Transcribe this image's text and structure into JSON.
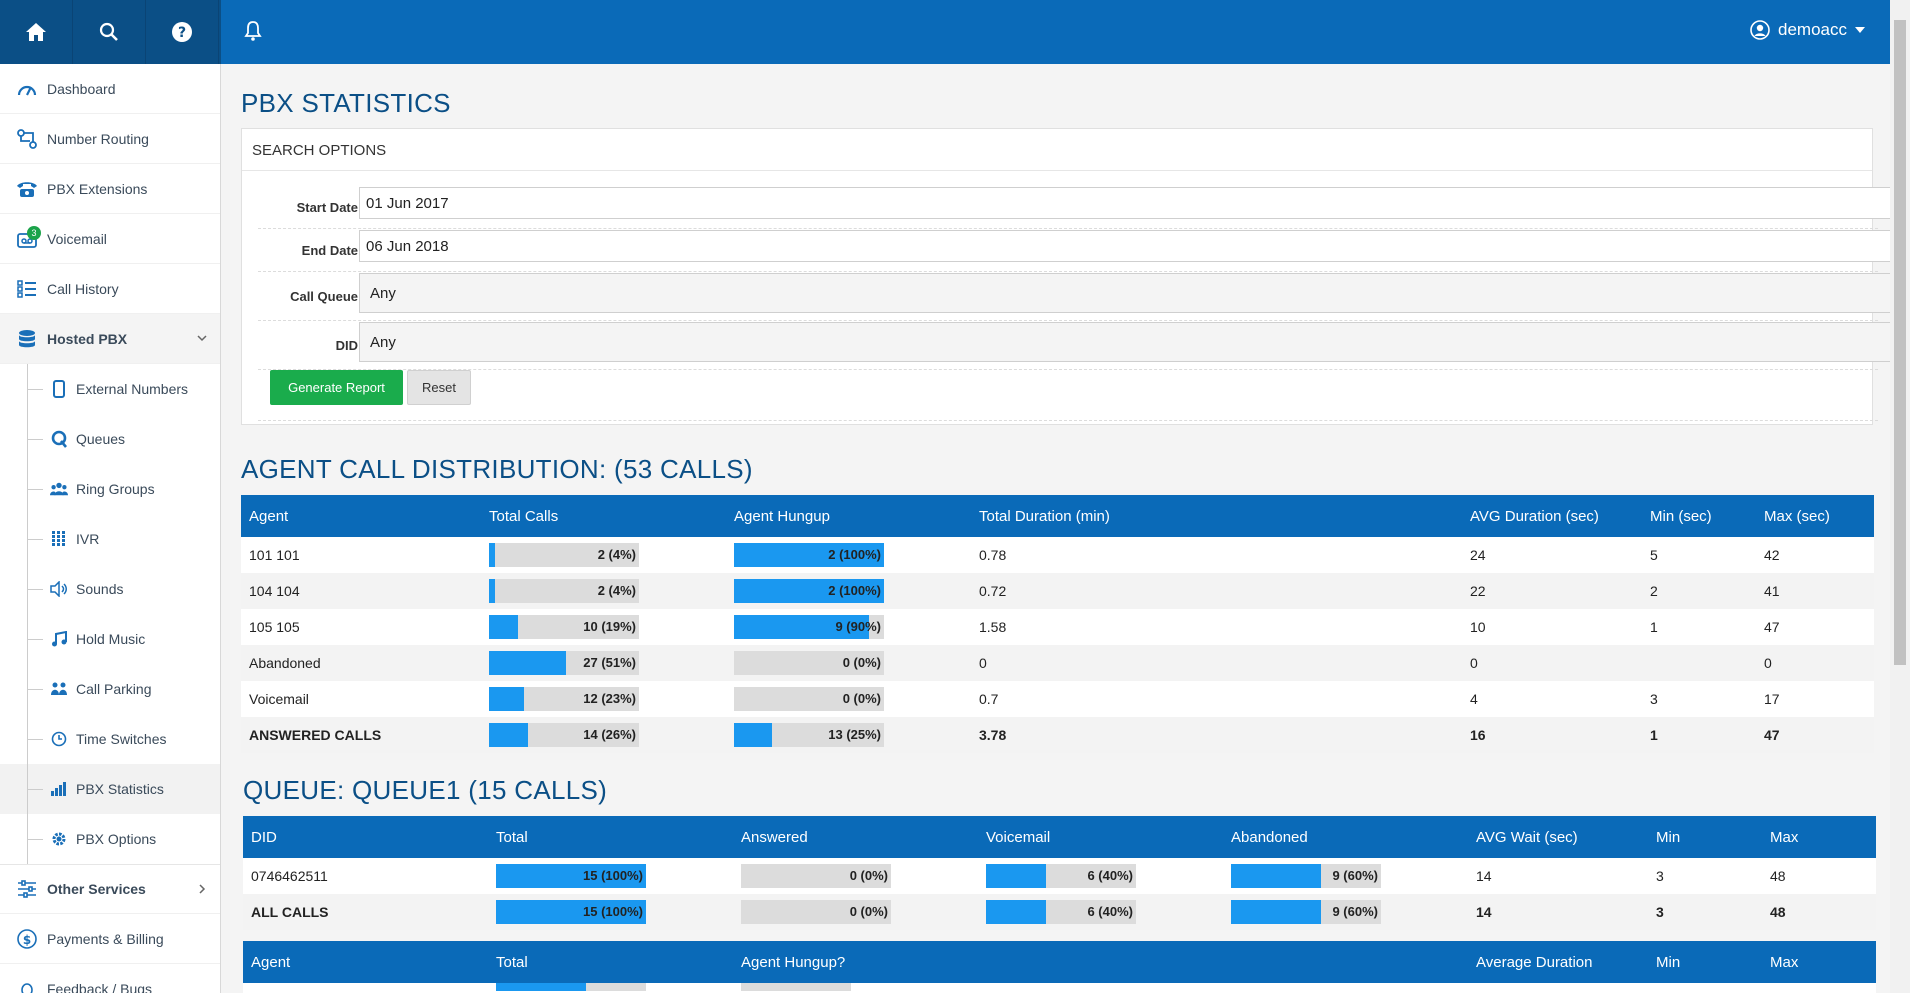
{
  "topbar": {
    "icons": [
      "home-icon",
      "search-icon",
      "help-icon",
      "bell-icon"
    ],
    "user": "demoacc"
  },
  "sidebar": {
    "items": [
      {
        "label": "Dashboard",
        "icon": "gauge-icon"
      },
      {
        "label": "Number Routing",
        "icon": "routing-icon"
      },
      {
        "label": "PBX Extensions",
        "icon": "phone-icon"
      },
      {
        "label": "Voicemail",
        "icon": "voicemail-icon",
        "badge": "3"
      },
      {
        "label": "Call History",
        "icon": "list-icon"
      },
      {
        "label": "Hosted PBX",
        "icon": "database-icon"
      }
    ],
    "subitems": [
      {
        "label": "External Numbers",
        "icon": "mobile-icon"
      },
      {
        "label": "Queues",
        "icon": "queue-icon"
      },
      {
        "label": "Ring Groups",
        "icon": "group-icon"
      },
      {
        "label": "IVR",
        "icon": "keypad-icon"
      },
      {
        "label": "Sounds",
        "icon": "speaker-icon"
      },
      {
        "label": "Hold Music",
        "icon": "music-icon"
      },
      {
        "label": "Call Parking",
        "icon": "parking-icon"
      },
      {
        "label": "Time Switches",
        "icon": "clock-icon"
      },
      {
        "label": "PBX Statistics",
        "icon": "bar-chart-icon"
      },
      {
        "label": "PBX Options",
        "icon": "gear-icon"
      }
    ],
    "bottom": [
      {
        "label": "Other Services",
        "icon": "sliders-icon"
      },
      {
        "label": "Payments & Billing",
        "icon": "dollar-icon"
      },
      {
        "label": "Feedback / Bugs",
        "icon": "bug-icon"
      }
    ]
  },
  "page": {
    "title": "PBX STATISTICS"
  },
  "search": {
    "header": "SEARCH OPTIONS",
    "start_label": "Start Date",
    "start_value": "01 Jun 2017",
    "end_label": "End Date",
    "end_value": "06 Jun 2018",
    "queue_label": "Call Queue",
    "queue_value": "Any",
    "did_label": "DID",
    "did_value": "Any",
    "generate": "Generate Report",
    "reset": "Reset"
  },
  "agent_dist": {
    "title": "AGENT CALL DISTRIBUTION: (53 CALLS)",
    "headers": [
      "Agent",
      "Total Calls",
      "Agent Hungup",
      "Total Duration (min)",
      "AVG Duration (sec)",
      "Min (sec)",
      "Max (sec)"
    ],
    "rows": [
      {
        "agent": "101 101",
        "total": "2 (4%)",
        "total_pct": 4,
        "hungup": "2 (100%)",
        "hungup_pct": 100,
        "duration": "0.78",
        "avg": "24",
        "min": "5",
        "max": "42"
      },
      {
        "agent": "104 104",
        "total": "2 (4%)",
        "total_pct": 4,
        "hungup": "2 (100%)",
        "hungup_pct": 100,
        "duration": "0.72",
        "avg": "22",
        "min": "2",
        "max": "41"
      },
      {
        "agent": "105 105",
        "total": "10 (19%)",
        "total_pct": 19,
        "hungup": "9 (90%)",
        "hungup_pct": 90,
        "duration": "1.58",
        "avg": "10",
        "min": "1",
        "max": "47"
      },
      {
        "agent": "Abandoned",
        "total": "27 (51%)",
        "total_pct": 51,
        "hungup": "0 (0%)",
        "hungup_pct": 0,
        "duration": "0",
        "avg": "0",
        "min": "",
        "max": "0"
      },
      {
        "agent": "Voicemail",
        "total": "12 (23%)",
        "total_pct": 23,
        "hungup": "0 (0%)",
        "hungup_pct": 0,
        "duration": "0.7",
        "avg": "4",
        "min": "3",
        "max": "17"
      },
      {
        "agent": "ANSWERED CALLS",
        "total": "14 (26%)",
        "total_pct": 26,
        "hungup": "13 (25%)",
        "hungup_pct": 25,
        "duration": "3.78",
        "avg": "16",
        "min": "1",
        "max": "47"
      }
    ]
  },
  "queue": {
    "title": "QUEUE: QUEUE1 (15 CALLS)",
    "headers": [
      "DID",
      "Total",
      "Answered",
      "Voicemail",
      "Abandoned",
      "AVG Wait (sec)",
      "Min",
      "Max"
    ],
    "rows": [
      {
        "did": "0746462511",
        "total": "15 (100%)",
        "total_pct": 100,
        "answered": "0 (0%)",
        "answered_pct": 0,
        "voicemail": "6 (40%)",
        "voicemail_pct": 40,
        "abandoned": "9 (60%)",
        "abandoned_pct": 60,
        "avg": "14",
        "min": "3",
        "max": "48"
      },
      {
        "did": "ALL CALLS",
        "total": "15 (100%)",
        "total_pct": 100,
        "answered": "0 (0%)",
        "answered_pct": 0,
        "voicemail": "6 (40%)",
        "voicemail_pct": 40,
        "abandoned": "9 (60%)",
        "abandoned_pct": 60,
        "avg": "14",
        "min": "3",
        "max": "48"
      }
    ]
  },
  "queue_agents": {
    "headers": [
      "Agent",
      "Total",
      "Agent Hungup?",
      "Average Duration",
      "Min",
      "Max"
    ]
  }
}
